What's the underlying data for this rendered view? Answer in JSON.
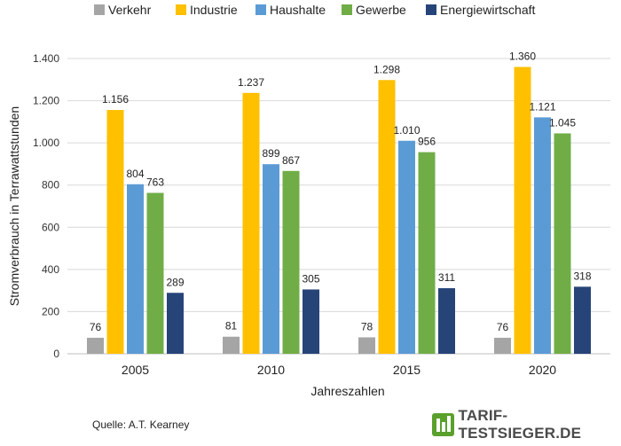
{
  "chart_data": {
    "type": "bar",
    "title": "",
    "xlabel": "Jahreszahlen",
    "ylabel": "Stromverbrauch in Terrawattstunden",
    "ylim": [
      0,
      1400
    ],
    "yticks": [
      0,
      200,
      400,
      600,
      800,
      1000,
      1200,
      1400
    ],
    "ytick_labels": [
      "0",
      "200",
      "400",
      "600",
      "800",
      "1.000",
      "1.200",
      "1.400"
    ],
    "categories": [
      "2005",
      "2010",
      "2015",
      "2020"
    ],
    "legend_position": "top",
    "grid": true,
    "series": [
      {
        "name": "Verkehr",
        "color": "#a5a5a5",
        "values": [
          76,
          81,
          78,
          76
        ],
        "labels": [
          "76",
          "81",
          "78",
          "76"
        ]
      },
      {
        "name": "Industrie",
        "color": "#ffc000",
        "values": [
          1156,
          1237,
          1298,
          1360
        ],
        "labels": [
          "1.156",
          "1.237",
          "1.298",
          "1.360"
        ]
      },
      {
        "name": "Haushalte",
        "color": "#5b9bd5",
        "values": [
          804,
          899,
          1010,
          1121
        ],
        "labels": [
          "804",
          "899",
          "1.010",
          "1.121"
        ]
      },
      {
        "name": "Gewerbe",
        "color": "#70ad47",
        "values": [
          763,
          867,
          956,
          1045
        ],
        "labels": [
          "763",
          "867",
          "956",
          "1.045"
        ]
      },
      {
        "name": "Energiewirtschaft",
        "color": "#264478",
        "values": [
          289,
          305,
          311,
          318
        ],
        "labels": [
          "289",
          "305",
          "311",
          "318"
        ]
      }
    ]
  },
  "source": "Quelle: A.T. Kearney",
  "brand": "TARIF-TESTSIEGER.DE"
}
